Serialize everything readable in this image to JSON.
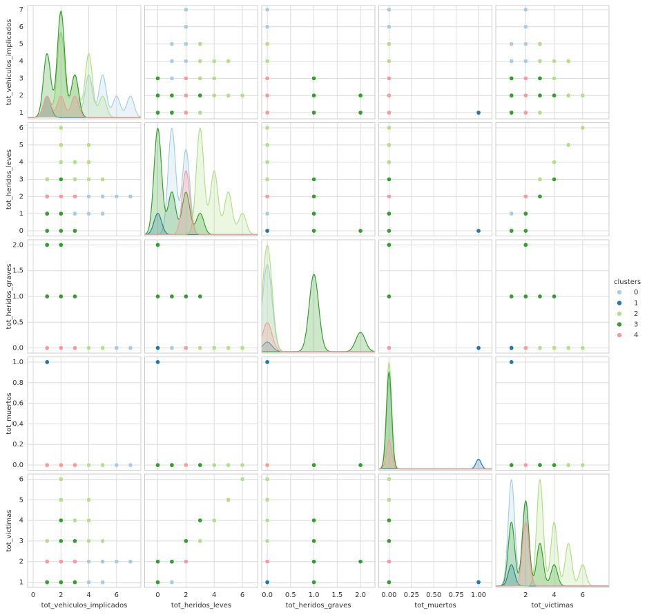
{
  "chart_data": {
    "type": "pairplot",
    "variables": [
      "tot_vehiculos_implicados",
      "tot_heridos_leves",
      "tot_heridos_graves",
      "tot_muertos",
      "tot_victimas"
    ],
    "axes": [
      {
        "xlim": [
          -0.4,
          7.75
        ],
        "ylim": [
          0.64,
          7.24
        ],
        "xticks": [
          0,
          2,
          4,
          6
        ],
        "yticks": [
          1,
          2,
          3,
          4,
          5,
          6,
          7
        ]
      },
      {
        "xlim": [
          -0.93,
          7.1
        ],
        "ylim": [
          -0.3,
          6.3
        ],
        "xticks": [
          0,
          2,
          4,
          6
        ],
        "yticks": [
          0,
          1,
          2,
          3,
          4,
          5,
          6
        ]
      },
      {
        "xlim": [
          -0.12,
          2.31
        ],
        "ylim": [
          -0.1,
          2.1
        ],
        "xticks": [
          {
            "value": 0,
            "label": "0.0"
          },
          {
            "value": 0.5,
            "label": "0.5"
          },
          {
            "value": 1,
            "label": "1.0"
          },
          {
            "value": 1.5,
            "label": "1.5"
          },
          {
            "value": 2,
            "label": "2.0"
          }
        ],
        "yticks": [
          {
            "value": 0,
            "label": "0.0"
          },
          {
            "value": 0.5,
            "label": "0.5"
          },
          {
            "value": 1,
            "label": "1.0"
          },
          {
            "value": 1.5,
            "label": "1.5"
          },
          {
            "value": 2,
            "label": "2.0"
          }
        ]
      },
      {
        "xlim": [
          -0.115,
          1.15
        ],
        "ylim": [
          -0.05,
          1.05
        ],
        "xticks": [
          {
            "value": 0,
            "label": "0.00"
          },
          {
            "value": 0.25,
            "label": "0.25"
          },
          {
            "value": 0.5,
            "label": "0.50"
          },
          {
            "value": 0.75,
            "label": "0.75"
          },
          {
            "value": 1,
            "label": "1.00"
          }
        ],
        "yticks": [
          {
            "value": 0,
            "label": "0.0"
          },
          {
            "value": 0.2,
            "label": "0.2"
          },
          {
            "value": 0.4,
            "label": "0.4"
          },
          {
            "value": 0.6,
            "label": "0.6"
          },
          {
            "value": 0.8,
            "label": "0.8"
          },
          {
            "value": 1,
            "label": "1.0"
          }
        ]
      },
      {
        "xlim": [
          -0.1,
          7.85
        ],
        "ylim": [
          0.75,
          6.25
        ],
        "xticks": [
          2,
          4,
          6
        ],
        "yticks": [
          1,
          2,
          3,
          4,
          5,
          6
        ]
      }
    ],
    "legend_title": "clusters",
    "grid": true,
    "series": [
      {
        "name": "0",
        "color": "#a6cee3",
        "points": [
          [
            2,
            1,
            0,
            0,
            1
          ],
          [
            3,
            1,
            0,
            0,
            1
          ],
          [
            4,
            1,
            0,
            0,
            1
          ],
          [
            5,
            1,
            0,
            0,
            1
          ],
          [
            1,
            1,
            0,
            0,
            1
          ],
          [
            4,
            2,
            0,
            0,
            2
          ],
          [
            5,
            2,
            0,
            0,
            2
          ],
          [
            6,
            2,
            0,
            0,
            2
          ],
          [
            7,
            2,
            0,
            0,
            2
          ]
        ]
      },
      {
        "name": "1",
        "color": "#1f78b4",
        "points": [
          [
            1,
            0,
            0,
            1,
            1
          ]
        ]
      },
      {
        "name": "2",
        "color": "#b2df8a",
        "points": [
          [
            1,
            3,
            0,
            0,
            3
          ],
          [
            2,
            3,
            0,
            0,
            3
          ],
          [
            3,
            3,
            0,
            0,
            3
          ],
          [
            4,
            3,
            0,
            0,
            3
          ],
          [
            5,
            3,
            0,
            0,
            3
          ],
          [
            2,
            4,
            0,
            0,
            4
          ],
          [
            3,
            4,
            0,
            0,
            4
          ],
          [
            4,
            4,
            0,
            0,
            4
          ],
          [
            2,
            5,
            0,
            0,
            5
          ],
          [
            4,
            5,
            0,
            0,
            5
          ],
          [
            2,
            6,
            0,
            0,
            6
          ]
        ]
      },
      {
        "name": "3",
        "color": "#33a02c",
        "points": [
          [
            1,
            0,
            1,
            0,
            1
          ],
          [
            2,
            0,
            1,
            0,
            1
          ],
          [
            3,
            0,
            1,
            0,
            1
          ],
          [
            1,
            0,
            2,
            0,
            2
          ],
          [
            2,
            0,
            2,
            0,
            2
          ],
          [
            1,
            1,
            1,
            0,
            2
          ],
          [
            2,
            1,
            1,
            0,
            2
          ],
          [
            2,
            2,
            1,
            0,
            3
          ],
          [
            3,
            2,
            1,
            0,
            3
          ],
          [
            2,
            3,
            1,
            0,
            4
          ]
        ]
      },
      {
        "name": "4",
        "color": "#fb9a99",
        "points": [
          [
            1,
            2,
            0,
            0,
            2
          ],
          [
            2,
            2,
            0,
            0,
            2
          ],
          [
            3,
            2,
            0,
            0,
            2
          ]
        ]
      }
    ]
  }
}
